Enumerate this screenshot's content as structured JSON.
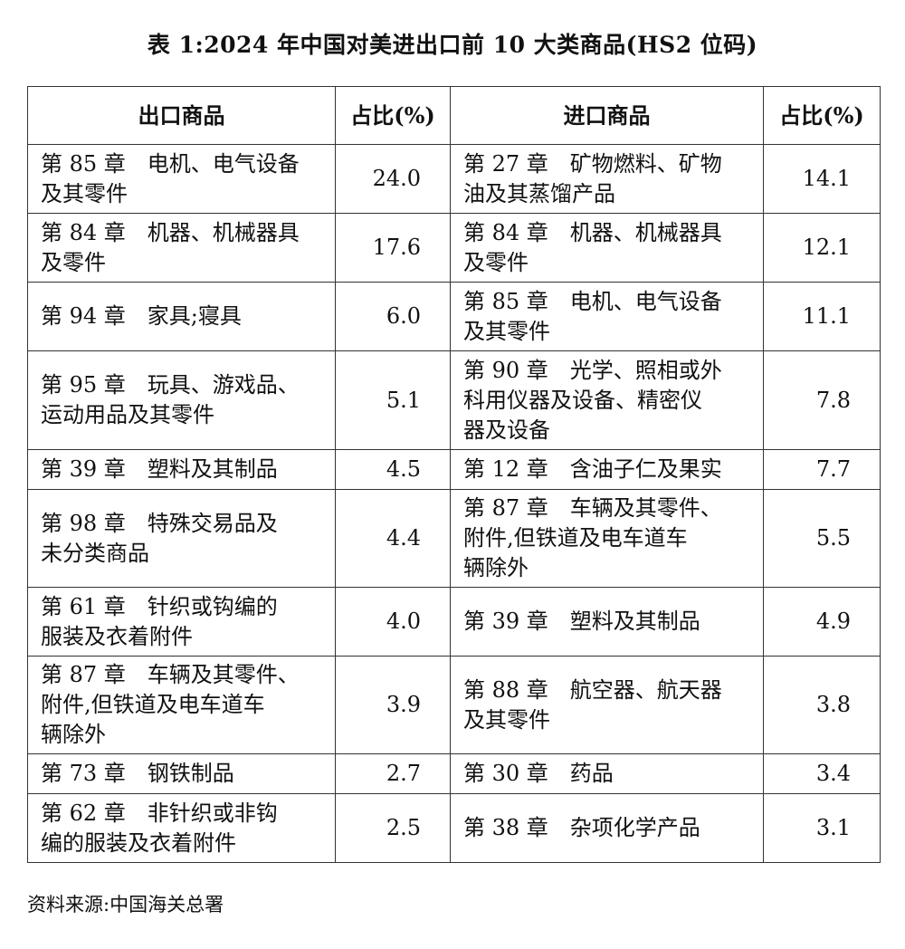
{
  "title": "表 1:2024 年中国对美进出口前 10 大类商品(HS2 位码)",
  "headers": [
    "出口商品",
    "占比(%)",
    "进口商品",
    "占比(%)"
  ],
  "rows": [
    {
      "export": "第 85 章　电机、电气设备\n及其零件",
      "export_share": "24.0",
      "import": "第 27 章　矿物燃料、矿物\n油及其蒸馏产品",
      "import_share": "14.1"
    },
    {
      "export": "第 84 章　机器、机械器具\n及零件",
      "export_share": "17.6",
      "import": "第 84 章　机器、机械器具\n及零件",
      "import_share": "12.1"
    },
    {
      "export": "第 94 章　家具;寝具",
      "export_share": "6.0",
      "import": "第 85 章　电机、电气设备\n及其零件",
      "import_share": "11.1"
    },
    {
      "export": "第 95 章　玩具、游戏品、\n运动用品及其零件",
      "export_share": "5.1",
      "import": "第 90 章　光学、照相或外\n科用仪器及设备、精密仪\n器及设备",
      "import_share": "7.8"
    },
    {
      "export": "第 39 章　塑料及其制品",
      "export_share": "4.5",
      "import": "第 12 章　含油子仁及果实",
      "import_share": "7.7"
    },
    {
      "export": "第 98 章　特殊交易品及\n未分类商品",
      "export_share": "4.4",
      "import": "第 87 章　车辆及其零件、\n附件,但铁道及电车道车\n辆除外",
      "import_share": "5.5"
    },
    {
      "export": "第 61 章　针织或钩编的\n服装及衣着附件",
      "export_share": "4.0",
      "import": "第 39 章　塑料及其制品",
      "import_share": "4.9"
    },
    {
      "export": "第 87 章　车辆及其零件、\n附件,但铁道及电车道车\n辆除外",
      "export_share": "3.9",
      "import": "第 88 章　航空器、航天器\n及其零件",
      "import_share": "3.8"
    },
    {
      "export": "第 73 章　钢铁制品",
      "export_share": "2.7",
      "import": "第 30 章　药品",
      "import_share": "3.4"
    },
    {
      "export": "第 62 章　非针织或非钩\n编的服装及衣着附件",
      "export_share": "2.5",
      "import": "第 38 章　杂项化学产品",
      "import_share": "3.1"
    }
  ],
  "source": "资料来源:中国海关总署"
}
